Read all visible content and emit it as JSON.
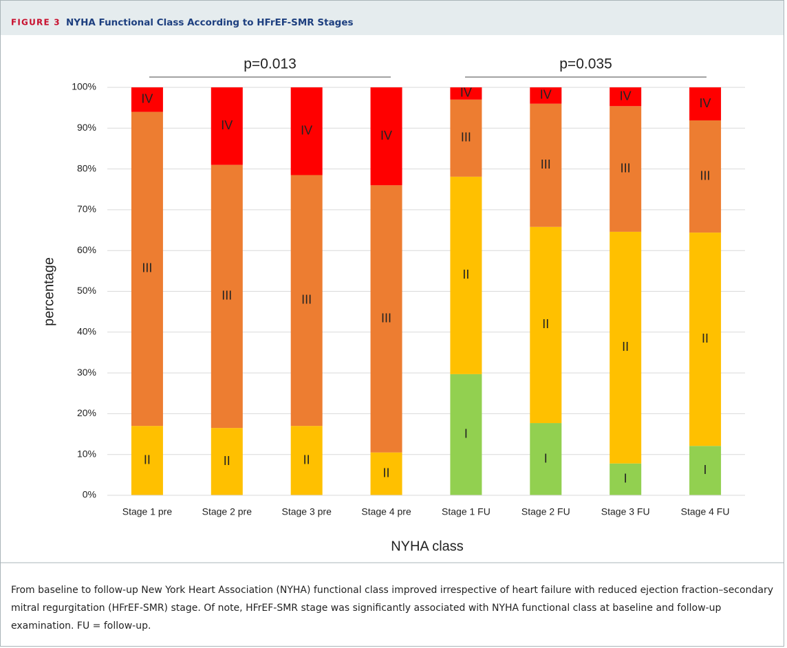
{
  "figure": {
    "label": "FIGURE 3",
    "title": "NYHA Functional Class According to HFrEF-SMR Stages"
  },
  "chart_data": {
    "type": "stacked_bar",
    "annotations": [
      "p=0.013",
      "p=0.035"
    ],
    "x_label": "NYHA class",
    "y_label": "percentage",
    "categories": [
      "Stage 1 pre",
      "Stage 2 pre",
      "Stage 3 pre",
      "Stage 4 pre",
      "Stage 1 FU",
      "Stage 2 FU",
      "Stage 3 FU",
      "Stage 4 FU"
    ],
    "series": [
      {
        "name": "I",
        "color": "#92d050",
        "values": [
          null,
          null,
          null,
          null,
          29.7,
          17.7,
          7.8,
          12.1
        ]
      },
      {
        "name": "II",
        "color": "#ffc000",
        "values": [
          17,
          16.5,
          17,
          10.5,
          48.4,
          48.1,
          56.8,
          52.3
        ]
      },
      {
        "name": "III",
        "color": "#ed7d31",
        "values": [
          77,
          64.5,
          61.5,
          65.5,
          18.9,
          30.2,
          30.8,
          27.5
        ]
      },
      {
        "name": "IV",
        "color": "#ff0000",
        "values": [
          6,
          19,
          21.5,
          24,
          3,
          4,
          4.6,
          8.1
        ]
      }
    ],
    "ylim": [
      0,
      100
    ],
    "yticks": [
      {
        "value": 0,
        "label": "0%"
      },
      {
        "value": 10,
        "label": "10%"
      },
      {
        "value": 20,
        "label": "20%"
      },
      {
        "value": 30,
        "label": "30%"
      },
      {
        "value": 40,
        "label": "40%"
      },
      {
        "value": 50,
        "label": "50%"
      },
      {
        "value": 60,
        "label": "60%"
      },
      {
        "value": 70,
        "label": "70%"
      },
      {
        "value": 80,
        "label": "80%"
      },
      {
        "value": 90,
        "label": "90%"
      },
      {
        "value": 100,
        "label": "100%"
      }
    ],
    "grid": true
  },
  "caption": "From baseline to follow-up New York Heart Association (NYHA) functional class improved irrespective of heart failure with reduced ejection fraction–secondary mitral regurgitation (HFrEF-SMR) stage. Of note, HFrEF-SMR stage was significantly associated with NYHA functional class at baseline and follow-up examination. FU = follow-up."
}
